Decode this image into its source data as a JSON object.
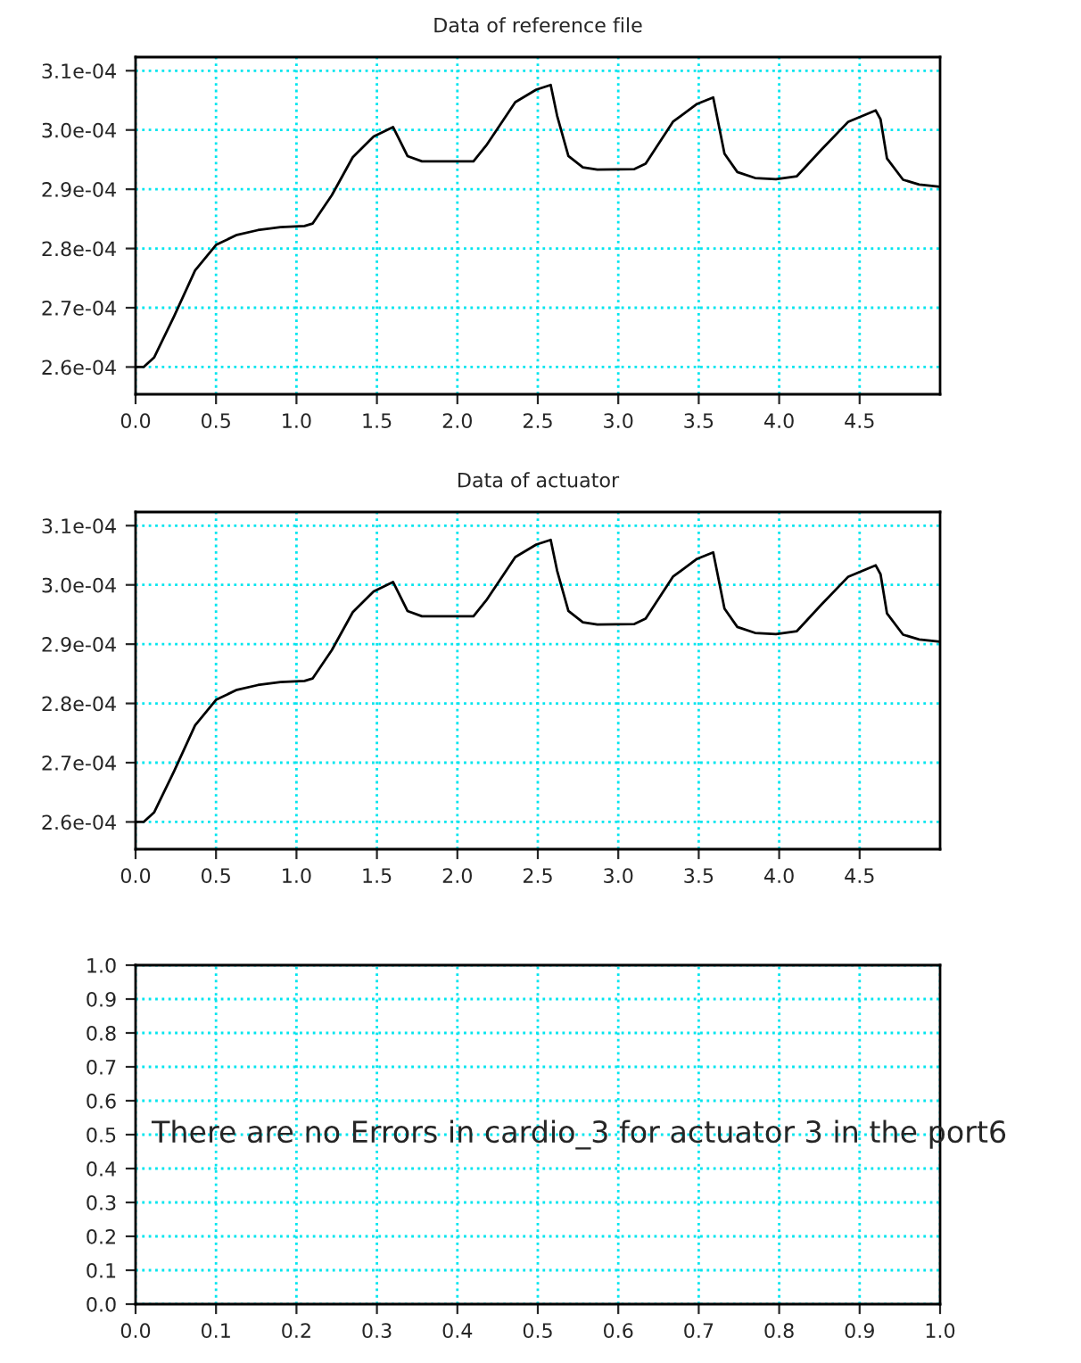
{
  "chart_data": [
    {
      "type": "line",
      "title": "Data of reference file",
      "xlim": [
        0,
        5
      ],
      "xticks": [
        {
          "value": 0,
          "label": "0.0"
        },
        0.5,
        {
          "value": 1,
          "label": "1.0"
        },
        1.5,
        {
          "value": 2,
          "label": "2.0"
        },
        2.5,
        {
          "value": 3,
          "label": "3.0"
        },
        3.5,
        {
          "value": 4,
          "label": "4.0"
        },
        4.5
      ],
      "ylim": [
        0.0002554,
        0.0003123
      ],
      "yticks": [
        {
          "value": 0.00026,
          "label": "2.6e-04"
        },
        {
          "value": 0.00027,
          "label": "2.7e-04"
        },
        {
          "value": 0.00028,
          "label": "2.8e-04"
        },
        {
          "value": 0.00029,
          "label": "2.9e-04"
        },
        {
          "value": 0.0003,
          "label": "3.0e-04"
        },
        {
          "value": 0.00031,
          "label": "3.1e-04"
        }
      ],
      "grid": true,
      "marker": "none",
      "line_style": "solid",
      "series": [
        {
          "color": "#000000",
          "x": [
            0,
            0.05,
            0.115,
            0.24,
            0.37,
            0.5,
            0.63,
            0.76,
            0.9,
            1.05,
            1.1,
            1.22,
            1.35,
            1.48,
            1.6,
            1.63,
            1.69,
            1.78,
            2.1,
            2.18,
            2.36,
            2.49,
            2.58,
            2.62,
            2.69,
            2.78,
            2.87,
            3.1,
            3.17,
            3.34,
            3.49,
            3.59,
            3.66,
            3.74,
            3.85,
            3.98,
            4.11,
            4.26,
            4.43,
            4.6,
            4.63,
            4.67,
            4.77,
            4.87,
            5.0
          ],
          "values": [
            0.00026,
            0.00026,
            0.0002616,
            0.0002686,
            0.0002763,
            0.0002806,
            0.0002823,
            0.0002831,
            0.0002836,
            0.0002838,
            0.0002842,
            0.000289,
            0.0002954,
            0.0002989,
            0.0003005,
            0.0002989,
            0.0002956,
            0.0002947,
            0.0002947,
            0.0002974,
            0.0003047,
            0.0003068,
            0.0003076,
            0.0003024,
            0.0002956,
            0.0002937,
            0.0002933,
            0.0002934,
            0.0002943,
            0.0003014,
            0.0003044,
            0.0003055,
            0.000296,
            0.0002929,
            0.0002919,
            0.0002917,
            0.0002922,
            0.0002966,
            0.0003014,
            0.0003033,
            0.0003018,
            0.0002952,
            0.0002916,
            0.0002908,
            0.0002904
          ]
        }
      ]
    },
    {
      "type": "line",
      "title": "Data of actuator",
      "xlim": [
        0,
        5
      ],
      "xticks": [
        {
          "value": 0,
          "label": "0.0"
        },
        0.5,
        {
          "value": 1,
          "label": "1.0"
        },
        1.5,
        {
          "value": 2,
          "label": "2.0"
        },
        2.5,
        {
          "value": 3,
          "label": "3.0"
        },
        3.5,
        {
          "value": 4,
          "label": "4.0"
        },
        4.5
      ],
      "ylim": [
        0.0002554,
        0.0003123
      ],
      "yticks": [
        {
          "value": 0.00026,
          "label": "2.6e-04"
        },
        {
          "value": 0.00027,
          "label": "2.7e-04"
        },
        {
          "value": 0.00028,
          "label": "2.8e-04"
        },
        {
          "value": 0.00029,
          "label": "2.9e-04"
        },
        {
          "value": 0.0003,
          "label": "3.0e-04"
        },
        {
          "value": 0.00031,
          "label": "3.1e-04"
        }
      ],
      "grid": true,
      "marker": "none",
      "line_style": "solid",
      "series": [
        {
          "color": "#000000",
          "x": [
            0,
            0.05,
            0.115,
            0.24,
            0.37,
            0.5,
            0.63,
            0.76,
            0.9,
            1.05,
            1.1,
            1.22,
            1.35,
            1.48,
            1.6,
            1.63,
            1.69,
            1.78,
            2.1,
            2.18,
            2.36,
            2.49,
            2.58,
            2.62,
            2.69,
            2.78,
            2.87,
            3.1,
            3.17,
            3.34,
            3.49,
            3.59,
            3.66,
            3.74,
            3.85,
            3.98,
            4.11,
            4.26,
            4.43,
            4.6,
            4.63,
            4.67,
            4.77,
            4.87,
            5.0
          ],
          "values": [
            0.00026,
            0.00026,
            0.0002616,
            0.0002686,
            0.0002763,
            0.0002806,
            0.0002823,
            0.0002831,
            0.0002836,
            0.0002838,
            0.0002842,
            0.000289,
            0.0002954,
            0.0002989,
            0.0003005,
            0.0002989,
            0.0002956,
            0.0002947,
            0.0002947,
            0.0002974,
            0.0003047,
            0.0003068,
            0.0003076,
            0.0003024,
            0.0002956,
            0.0002937,
            0.0002933,
            0.0002934,
            0.0002943,
            0.0003014,
            0.0003044,
            0.0003055,
            0.000296,
            0.0002929,
            0.0002919,
            0.0002917,
            0.0002922,
            0.0002966,
            0.0003014,
            0.0003033,
            0.0003018,
            0.0002952,
            0.0002916,
            0.0002908,
            0.0002904
          ]
        }
      ]
    },
    {
      "type": "line",
      "annotations": [
        "There are no Errors in cardio_3 for actuator 3 in the port6"
      ],
      "xlim": [
        0,
        1
      ],
      "xticks": [
        {
          "value": 0,
          "label": "0.0"
        },
        0.1,
        0.2,
        0.3,
        0.4,
        0.5,
        0.6,
        0.7,
        0.8,
        0.9,
        {
          "value": 1,
          "label": "1.0"
        }
      ],
      "ylim": [
        0,
        1
      ],
      "yticks": [
        {
          "value": 0,
          "label": "0.0"
        },
        0.1,
        0.2,
        0.3,
        0.4,
        0.5,
        0.6,
        0.7,
        0.8,
        0.9,
        {
          "value": 1,
          "label": "1.0"
        }
      ],
      "grid": true
    }
  ]
}
